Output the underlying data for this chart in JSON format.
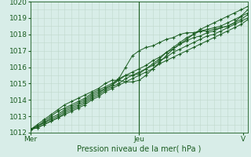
{
  "title": "",
  "xlabel": "Pression niveau de la mer( hPa )",
  "bg_color": "#d8ede8",
  "grid_color": "#c0d8cc",
  "line_color": "#1a5c20",
  "vline_color": "#1a5c20",
  "font_color": "#1a5c20",
  "ylim": [
    1012,
    1020
  ],
  "xlim": [
    0,
    96
  ],
  "yticks": [
    1012,
    1013,
    1014,
    1015,
    1016,
    1017,
    1018,
    1019,
    1020
  ],
  "x_ticks": [
    0,
    48,
    94
  ],
  "x_tick_labels": [
    "Mer",
    "Jeu",
    "V"
  ],
  "vline_x": 48,
  "marker": "+",
  "marker_size": 3.5,
  "marker_lw": 0.8,
  "line_width": 0.7,
  "x_points": [
    0,
    3,
    6,
    9,
    12,
    15,
    18,
    21,
    24,
    27,
    30,
    33,
    36,
    39,
    42,
    45,
    48,
    51,
    54,
    57,
    60,
    63,
    66,
    69,
    72,
    75,
    78,
    81,
    84,
    87,
    90,
    93,
    96
  ],
  "lines_y": [
    [
      1012.2,
      1012.5,
      1012.8,
      1013.1,
      1013.4,
      1013.7,
      1013.9,
      1014.1,
      1014.3,
      1014.5,
      1014.7,
      1015.0,
      1015.2,
      1015.2,
      1015.1,
      1015.1,
      1015.2,
      1015.5,
      1015.9,
      1016.3,
      1016.7,
      1017.1,
      1017.4,
      1017.7,
      1018.0,
      1018.3,
      1018.5,
      1018.7,
      1018.9,
      1019.1,
      1019.3,
      1019.5,
      1019.7
    ],
    [
      1012.2,
      1012.4,
      1012.7,
      1013.0,
      1013.3,
      1013.5,
      1013.7,
      1013.9,
      1014.1,
      1014.4,
      1014.6,
      1014.8,
      1015.0,
      1015.3,
      1015.5,
      1015.5,
      1015.6,
      1015.9,
      1016.2,
      1016.5,
      1016.9,
      1017.2,
      1017.5,
      1017.8,
      1018.0,
      1018.2,
      1018.3,
      1018.4,
      1018.5,
      1018.7,
      1018.9,
      1019.1,
      1019.3
    ],
    [
      1012.2,
      1012.4,
      1012.6,
      1012.9,
      1013.1,
      1013.4,
      1013.6,
      1013.8,
      1014.0,
      1014.3,
      1014.5,
      1014.7,
      1014.9,
      1015.3,
      1016.0,
      1016.7,
      1017.0,
      1017.2,
      1017.3,
      1017.5,
      1017.7,
      1017.8,
      1018.0,
      1018.1,
      1018.1,
      1018.2,
      1018.2,
      1018.3,
      1018.4,
      1018.5,
      1018.7,
      1019.1,
      1019.5
    ],
    [
      1012.2,
      1012.4,
      1012.6,
      1012.8,
      1013.0,
      1013.3,
      1013.5,
      1013.7,
      1013.9,
      1014.2,
      1014.4,
      1014.7,
      1014.9,
      1015.2,
      1015.5,
      1015.7,
      1015.9,
      1016.1,
      1016.4,
      1016.6,
      1016.9,
      1017.1,
      1017.4,
      1017.6,
      1017.8,
      1017.9,
      1018.1,
      1018.2,
      1018.4,
      1018.5,
      1018.7,
      1018.9,
      1019.2
    ],
    [
      1012.2,
      1012.3,
      1012.5,
      1012.7,
      1012.9,
      1013.2,
      1013.4,
      1013.6,
      1013.8,
      1014.1,
      1014.3,
      1014.6,
      1014.8,
      1015.0,
      1015.3,
      1015.5,
      1015.7,
      1015.9,
      1016.1,
      1016.4,
      1016.6,
      1016.9,
      1017.1,
      1017.3,
      1017.5,
      1017.7,
      1017.9,
      1018.0,
      1018.2,
      1018.4,
      1018.6,
      1018.8,
      1019.0
    ],
    [
      1012.2,
      1012.3,
      1012.5,
      1012.7,
      1012.9,
      1013.1,
      1013.3,
      1013.5,
      1013.7,
      1014.0,
      1014.2,
      1014.5,
      1014.7,
      1014.9,
      1015.1,
      1015.3,
      1015.5,
      1015.7,
      1015.9,
      1016.2,
      1016.4,
      1016.6,
      1016.8,
      1017.0,
      1017.2,
      1017.4,
      1017.6,
      1017.8,
      1018.0,
      1018.2,
      1018.4,
      1018.6,
      1018.9
    ]
  ]
}
